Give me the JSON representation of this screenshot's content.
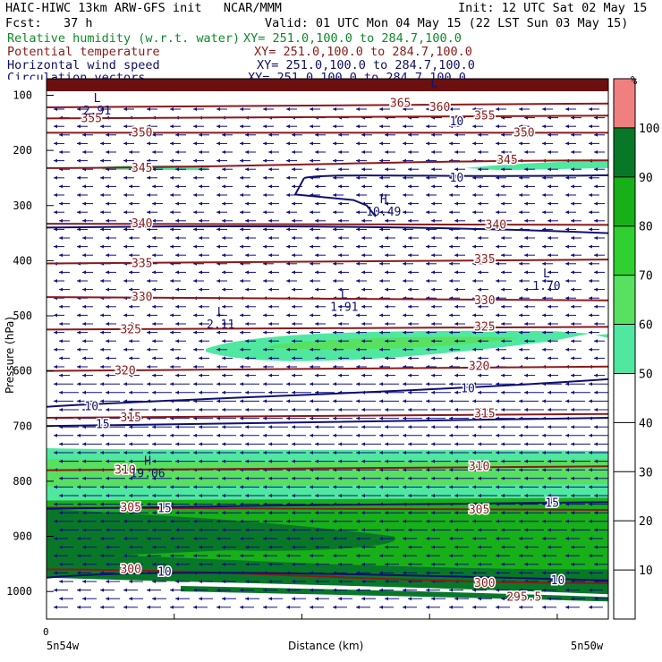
{
  "header": {
    "left_line1": "HAIC-HIWC 13km ARW-GFS init   NCAR/MMM",
    "left_line2": "Fcst:   37 h",
    "init": "Init: 12 UTC Sat 02 May 15",
    "valid": "Valid: 01 UTC Mon 04 May 15 (22 LST Sun 03 May 15)",
    "fields": [
      {
        "name": "Relative humidity (w.r.t. water)",
        "xy": "XY= 251.0,100.0 to 284.7,100.0",
        "color": "#0d8a2a"
      },
      {
        "name": "Potential temperature",
        "xy": "XY= 251.0,100.0 to 284.7,100.0",
        "color": "#8b1a1a"
      },
      {
        "name": "Horizontal wind speed",
        "xy": "XY= 251.0,100.0 to 284.7,100.0",
        "color": "#101060"
      },
      {
        "name": "Circulation vectors",
        "xy": "XY= 251.0,100.0 to 284.7,100.0",
        "color": "#101080"
      }
    ]
  },
  "chart_data": {
    "type": "heatmap",
    "description_fields": [
      "relative_humidity_fill",
      "potential_temperature_contours",
      "wind_speed_contours",
      "circulation_vectors"
    ],
    "ylabel": "Pressure (hPa)",
    "xlabel": "Distance (km)",
    "x_start_label": "5n54w",
    "x_end_label": "5n50w",
    "x_tick_zero": "0",
    "y_ticks": [
      100,
      200,
      300,
      400,
      500,
      600,
      700,
      800,
      900,
      1000
    ],
    "ylim": [
      1050,
      70
    ],
    "y_scale": "linear",
    "colorbar": {
      "unit": "%",
      "ticks": [
        10,
        20,
        30,
        40,
        50,
        60,
        70,
        80,
        90,
        100
      ],
      "bands": [
        {
          "from": 50,
          "to": 60,
          "color": "#50e8a0"
        },
        {
          "from": 60,
          "to": 70,
          "color": "#58e060"
        },
        {
          "from": 70,
          "to": 80,
          "color": "#30d030"
        },
        {
          "from": 80,
          "to": 90,
          "color": "#18b018"
        },
        {
          "from": 90,
          "to": 100,
          "color": "#087828"
        },
        {
          "from": 100,
          "to": 110,
          "color": "#f08080"
        }
      ]
    },
    "theta_labels": [
      {
        "text": "355",
        "p": 142,
        "x": 0.08
      },
      {
        "text": "365",
        "p": 115,
        "x": 0.63
      },
      {
        "text": "360",
        "p": 122,
        "x": 0.7
      },
      {
        "text": "355",
        "p": 137,
        "x": 0.78
      },
      {
        "text": "350",
        "p": 168,
        "x": 0.17
      },
      {
        "text": "350",
        "p": 168,
        "x": 0.85
      },
      {
        "text": "345",
        "p": 232,
        "x": 0.17
      },
      {
        "text": "345",
        "p": 218,
        "x": 0.82
      },
      {
        "text": "340",
        "p": 333,
        "x": 0.17
      },
      {
        "text": "340",
        "p": 335,
        "x": 0.8
      },
      {
        "text": "335",
        "p": 405,
        "x": 0.17
      },
      {
        "text": "335",
        "p": 398,
        "x": 0.78
      },
      {
        "text": "330",
        "p": 466,
        "x": 0.17
      },
      {
        "text": "330",
        "p": 472,
        "x": 0.78
      },
      {
        "text": "325",
        "p": 525,
        "x": 0.15
      },
      {
        "text": "325",
        "p": 520,
        "x": 0.78
      },
      {
        "text": "320",
        "p": 600,
        "x": 0.14
      },
      {
        "text": "320",
        "p": 592,
        "x": 0.77
      },
      {
        "text": "315",
        "p": 685,
        "x": 0.15
      },
      {
        "text": "315",
        "p": 678,
        "x": 0.78
      },
      {
        "text": "310",
        "p": 780,
        "x": 0.14
      },
      {
        "text": "310",
        "p": 773,
        "x": 0.77
      },
      {
        "text": "305",
        "p": 848,
        "x": 0.15
      },
      {
        "text": "305",
        "p": 852,
        "x": 0.77
      },
      {
        "text": "300",
        "p": 960,
        "x": 0.15
      },
      {
        "text": "300",
        "p": 985,
        "x": 0.78
      },
      {
        "text": "295.5",
        "p": 1010,
        "x": 0.85
      }
    ],
    "wind_labels": [
      {
        "text": "10",
        "p": 148,
        "x": 0.73
      },
      {
        "text": "10",
        "p": 250,
        "x": 0.73
      },
      {
        "text": "10",
        "p": 632,
        "x": 0.75
      },
      {
        "text": "10",
        "p": 665,
        "x": 0.08
      },
      {
        "text": "15",
        "p": 697,
        "x": 0.1
      },
      {
        "text": "15",
        "p": 850,
        "x": 0.21
      },
      {
        "text": "15",
        "p": 840,
        "x": 0.9
      },
      {
        "text": "10",
        "p": 965,
        "x": 0.21
      },
      {
        "text": "10",
        "p": 980,
        "x": 0.91
      }
    ],
    "extrema": [
      {
        "type": "L",
        "value": "2.91",
        "p": 122,
        "x": 0.09
      },
      {
        "type": "L",
        "value": "",
        "p": 95,
        "x": 0.69
      },
      {
        "type": "H",
        "value": "10.49",
        "p": 305,
        "x": 0.6
      },
      {
        "type": "L",
        "value": "1.91",
        "p": 478,
        "x": 0.53
      },
      {
        "type": "L",
        "value": "2.11",
        "p": 510,
        "x": 0.31
      },
      {
        "type": "L",
        "value": "1.70",
        "p": 440,
        "x": 0.89
      },
      {
        "type": "H",
        "value": "19.06",
        "p": 780,
        "x": 0.18
      }
    ],
    "grid": false
  }
}
